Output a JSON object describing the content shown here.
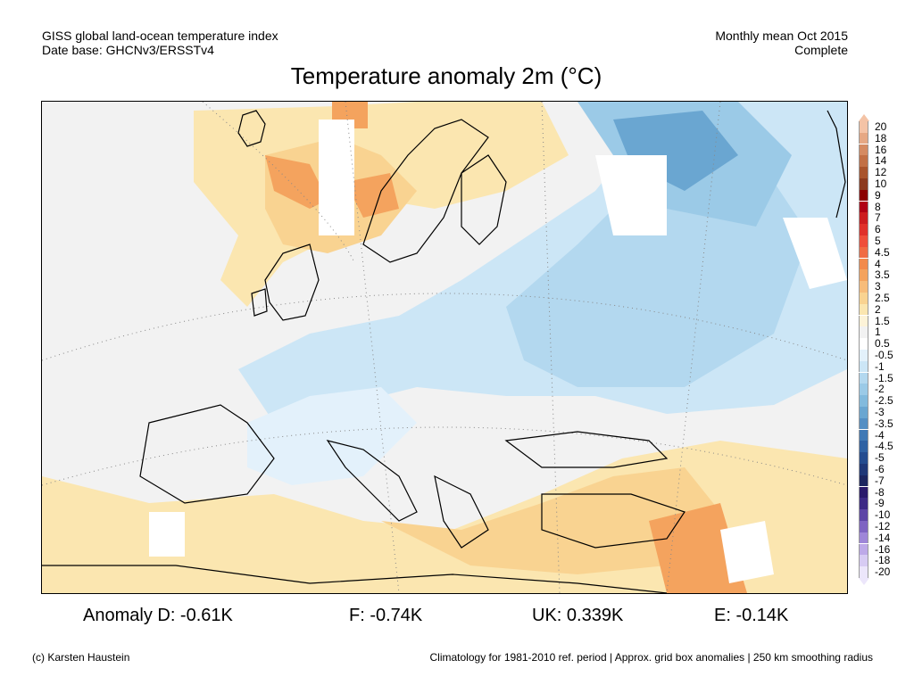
{
  "header": {
    "dataset": "GISS global land-ocean temperature index",
    "database": "Date base: GHCNv3/ERSSTv4",
    "period": "Monthly mean Oct 2015",
    "status": "Complete"
  },
  "title": "Temperature anomaly 2m (°C)",
  "legend": {
    "labels": [
      "20",
      "18",
      "16",
      "14",
      "12",
      "10",
      "9",
      "8",
      "7",
      "6",
      "5",
      "4.5",
      "4",
      "3.5",
      "3",
      "2.5",
      "2",
      "1.5",
      "1",
      "0.5",
      "-0.5",
      "-1",
      "-1.5",
      "-2",
      "-2.5",
      "-3",
      "-3.5",
      "-4",
      "-4.5",
      "-5",
      "-6",
      "-7",
      "-8",
      "-9",
      "-10",
      "-12",
      "-14",
      "-16",
      "-18",
      "-20"
    ],
    "colors": [
      "#f4c3a6",
      "#e6a884",
      "#d58b62",
      "#c27045",
      "#a9542c",
      "#8c3a1e",
      "#8b0000",
      "#b00014",
      "#cc1c1f",
      "#e0302a",
      "#ef4e3a",
      "#f06b43",
      "#f28a4c",
      "#f4a35e",
      "#f7bc7a",
      "#f9d391",
      "#fbe6b0",
      "#fdf3d8",
      "#f2f2f2",
      "#ffffff",
      "#e3f1fb",
      "#cce6f6",
      "#b3d8ef",
      "#9bcae7",
      "#82badd",
      "#6aa6d1",
      "#548fc4",
      "#4079b5",
      "#2f62a3",
      "#244c8f",
      "#1f3878",
      "#1c2660",
      "#2a1a6b",
      "#3d2a85",
      "#5d45a6",
      "#7e64c2",
      "#9e86d8",
      "#bda9e8",
      "#d7cbf3",
      "#ece6fb"
    ]
  },
  "stats": {
    "germany": "Anomaly D: -0.61K",
    "france": "F: -0.74K",
    "uk": "UK: 0.339K",
    "spain": "E: -0.14K"
  },
  "footer": {
    "credit": "(c) Karsten Haustein",
    "note": "Climatology for 1981-2010 ref. period | Approx. grid box anomalies | 250 km smoothing radius"
  },
  "map": {
    "region": "Europe",
    "colors": {
      "neutral": "#f2f2f2",
      "light_warm": "#fbe6b0",
      "warm": "#f9d391",
      "warmer": "#f7bc7a",
      "hot": "#f4a35e",
      "light_cool": "#e3f1fb",
      "cool": "#cce6f6",
      "cooler": "#b3d8ef",
      "cold": "#9bcae7",
      "colder": "#6aa6d1",
      "missing": "#ffffff"
    }
  }
}
